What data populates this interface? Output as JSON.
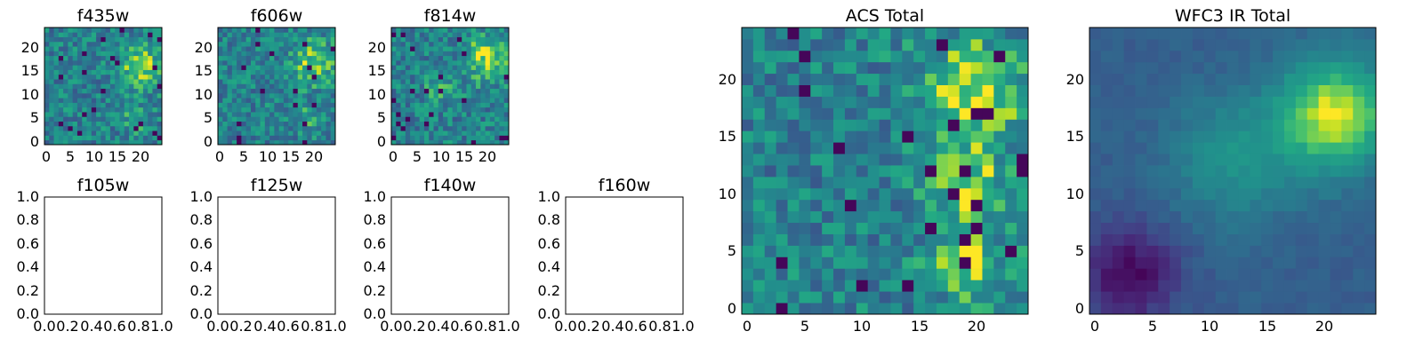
{
  "chart_data": [
    {
      "type": "heatmap",
      "title": "f435w",
      "grid_size": 25,
      "xlim": [
        0,
        24
      ],
      "ylim": [
        0,
        24
      ],
      "xticks": [
        "0",
        "5",
        "10",
        "15",
        "20"
      ],
      "yticks": [
        "0",
        "5",
        "10",
        "15",
        "20"
      ],
      "colormap": "viridis",
      "pattern": "noisy",
      "hotspots": [
        {
          "x": 20,
          "y": 16,
          "amplitude": 0.35,
          "spread": 3.2
        },
        {
          "x": 19,
          "y": 5,
          "amplitude": 0.2,
          "spread": 2.0
        }
      ]
    },
    {
      "type": "heatmap",
      "title": "f606w",
      "grid_size": 25,
      "xlim": [
        0,
        24
      ],
      "ylim": [
        0,
        24
      ],
      "xticks": [
        "0",
        "5",
        "10",
        "15",
        "20"
      ],
      "yticks": [
        "0",
        "5",
        "10",
        "15",
        "20"
      ],
      "colormap": "viridis",
      "pattern": "noisy",
      "hotspots": [
        {
          "x": 20,
          "y": 17,
          "amplitude": 0.35,
          "spread": 3.2
        },
        {
          "x": 19,
          "y": 5,
          "amplitude": 0.2,
          "spread": 2.0
        }
      ]
    },
    {
      "type": "heatmap",
      "title": "f814w",
      "grid_size": 25,
      "xlim": [
        0,
        24
      ],
      "ylim": [
        0,
        24
      ],
      "xticks": [
        "0",
        "5",
        "10",
        "15",
        "20"
      ],
      "yticks": [
        "0",
        "5",
        "10",
        "15",
        "20"
      ],
      "colormap": "viridis",
      "pattern": "noisy",
      "hotspots": [
        {
          "x": 20,
          "y": 18,
          "amplitude": 0.4,
          "spread": 3.2
        },
        {
          "x": 10,
          "y": 12,
          "amplitude": 0.2,
          "spread": 2.2
        }
      ]
    },
    {
      "type": "empty",
      "title": "f105w",
      "xlim": [
        0.0,
        1.0
      ],
      "ylim": [
        0.0,
        1.0
      ],
      "xticks": [
        "0.0",
        "0.2",
        "0.4",
        "0.6",
        "0.8",
        "1.0"
      ],
      "yticks": [
        "0.0",
        "0.2",
        "0.4",
        "0.6",
        "0.8",
        "1.0"
      ]
    },
    {
      "type": "empty",
      "title": "f125w",
      "xlim": [
        0.0,
        1.0
      ],
      "ylim": [
        0.0,
        1.0
      ],
      "xticks": [
        "0.0",
        "0.2",
        "0.4",
        "0.6",
        "0.8",
        "1.0"
      ],
      "yticks": [
        "0.0",
        "0.2",
        "0.4",
        "0.6",
        "0.8",
        "1.0"
      ]
    },
    {
      "type": "empty",
      "title": "f140w",
      "xlim": [
        0.0,
        1.0
      ],
      "ylim": [
        0.0,
        1.0
      ],
      "xticks": [
        "0.0",
        "0.2",
        "0.4",
        "0.6",
        "0.8",
        "1.0"
      ],
      "yticks": [
        "0.0",
        "0.2",
        "0.4",
        "0.6",
        "0.8",
        "1.0"
      ]
    },
    {
      "type": "empty",
      "title": "f160w",
      "xlim": [
        0.0,
        1.0
      ],
      "ylim": [
        0.0,
        1.0
      ],
      "xticks": [
        "0.0",
        "0.2",
        "0.4",
        "0.6",
        "0.8",
        "1.0"
      ],
      "yticks": [
        "0.0",
        "0.2",
        "0.4",
        "0.6",
        "0.8",
        "1.0"
      ]
    },
    {
      "type": "heatmap",
      "title": "ACS Total",
      "grid_size": 25,
      "xlim": [
        -0.5,
        24.5
      ],
      "ylim": [
        -0.5,
        24.5
      ],
      "xticks": [
        "0",
        "5",
        "10",
        "15",
        "20"
      ],
      "yticks": [
        "0",
        "5",
        "10",
        "15",
        "20"
      ],
      "colormap": "viridis",
      "pattern": "noisy",
      "hotspots": [
        {
          "x": 20,
          "y": 19,
          "amplitude": 0.45,
          "spread": 3.0
        },
        {
          "x": 19,
          "y": 11,
          "amplitude": 0.35,
          "spread": 2.5
        },
        {
          "x": 19,
          "y": 4,
          "amplitude": 0.35,
          "spread": 2.2
        }
      ]
    },
    {
      "type": "heatmap",
      "title": "WFC3 IR Total",
      "grid_size": 25,
      "xlim": [
        -0.5,
        24.5
      ],
      "ylim": [
        -0.5,
        24.5
      ],
      "xticks": [
        "0",
        "5",
        "10",
        "15",
        "20"
      ],
      "yticks": [
        "0",
        "5",
        "10",
        "15",
        "20"
      ],
      "colormap": "viridis",
      "pattern": "smooth",
      "hotspots": [
        {
          "x": 21,
          "y": 17,
          "amplitude": 0.6,
          "spread": 3.5
        },
        {
          "x": 12,
          "y": 13,
          "amplitude": 0.25,
          "spread": 4.0
        }
      ],
      "coldspots": [
        {
          "x": 3,
          "y": 3,
          "amplitude": 0.35,
          "spread": 3.0
        }
      ]
    }
  ]
}
